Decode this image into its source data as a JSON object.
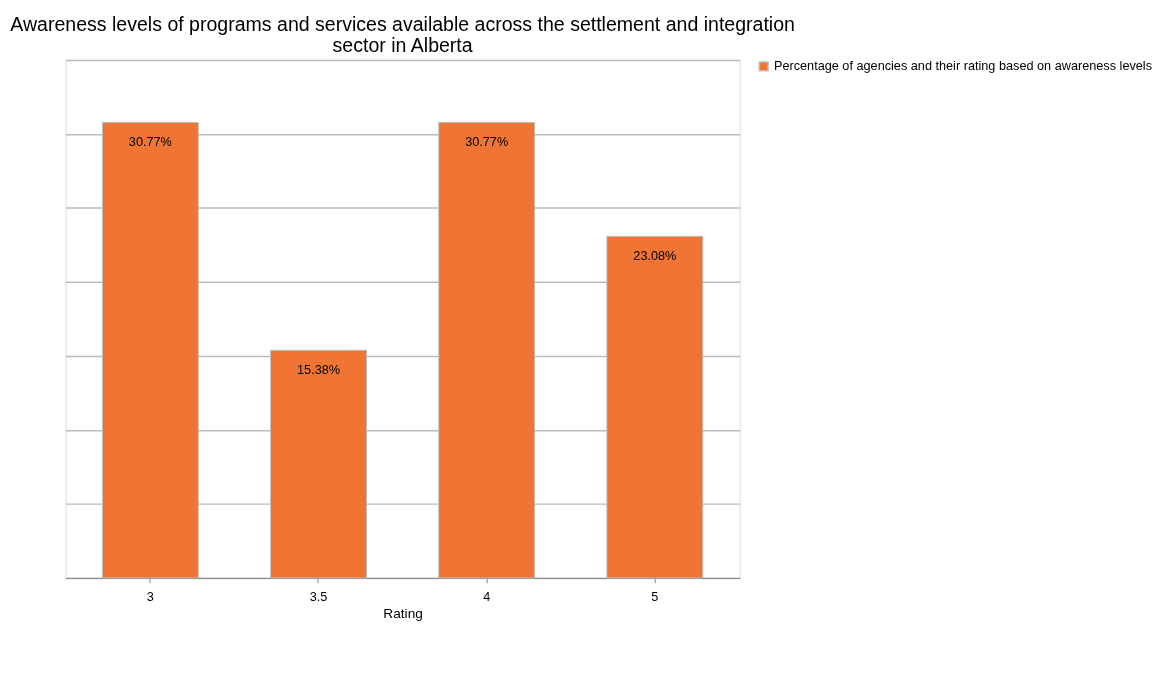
{
  "chart_data": {
    "type": "bar",
    "title": "Awareness levels of programs and services available across the settlement and integration sector in Alberta",
    "xlabel": "Rating",
    "categories": [
      "3",
      "3.5",
      "4",
      "5"
    ],
    "series": [
      {
        "name": "Percentage of agencies and their rating based on awareness levels",
        "color": "#f07535",
        "values": [
          30.77,
          15.38,
          30.77,
          23.08
        ],
        "value_labels": [
          "30.77%",
          "15.38%",
          "30.77%",
          "23.08%"
        ]
      }
    ],
    "ylim": [
      0,
      35
    ],
    "yticks": [
      {
        "value": 0,
        "label": null
      },
      {
        "value": 5,
        "label": null
      },
      {
        "value": 10,
        "label": null
      },
      {
        "value": 15,
        "label": null
      },
      {
        "value": 20,
        "label": null
      },
      {
        "value": 25,
        "label": null
      },
      {
        "value": 30,
        "label": null
      },
      {
        "value": 35,
        "label": null
      }
    ],
    "tick_labels": "x",
    "grid": "y",
    "legend": "right"
  }
}
